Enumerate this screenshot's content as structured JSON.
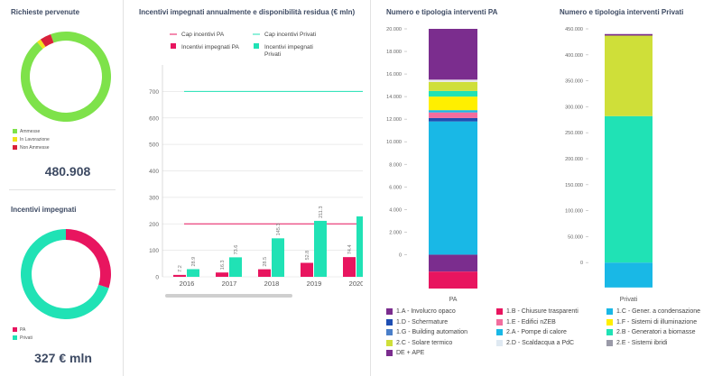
{
  "richieste": {
    "title": "Richieste pervenute",
    "legend": [
      {
        "label": "Ammesse",
        "color": "#7ee24a"
      },
      {
        "label": "In Lavorazione",
        "color": "#f2e21a"
      },
      {
        "label": "Non Ammesse",
        "color": "#d9213a"
      }
    ],
    "total": "480.908"
  },
  "incentivi_impegnati": {
    "title": "Incentivi impegnati",
    "legend": [
      {
        "label": "PA",
        "color": "#e8155f"
      },
      {
        "label": "Privati",
        "color": "#20e2b5"
      }
    ],
    "total": "327 € mln"
  },
  "chart_data": [
    {
      "type": "pie",
      "title": "Richieste pervenute",
      "categories": [
        "Ammesse",
        "In Lavorazione",
        "Non Ammesse"
      ],
      "values": [
        94.5,
        1.5,
        4.0
      ]
    },
    {
      "type": "pie",
      "title": "Incentivi impegnati",
      "categories": [
        "PA",
        "Privati"
      ],
      "values": [
        30,
        70
      ]
    },
    {
      "type": "bar",
      "title": "Incentivi impegnati annualmente e disponibilità residua (€ mln)",
      "categories": [
        "2016",
        "2017",
        "2018",
        "2019",
        "2020"
      ],
      "series": [
        {
          "name": "Incentivi impegnati PA",
          "values": [
            7.2,
            16.3,
            28.5,
            52.8,
            74.4
          ],
          "color": "#e8155f"
        },
        {
          "name": "Incentivi impegnati Privati",
          "values": [
            28.9,
            73.6,
            145.3,
            211.3,
            228
          ],
          "color": "#20e2b5"
        },
        {
          "name": "Cap incentivi PA",
          "values": [
            200,
            200,
            200,
            200,
            200
          ],
          "color": "#e8155f",
          "kind": "line"
        },
        {
          "name": "Cap incentivi Privati",
          "values": [
            700,
            700,
            700,
            700,
            700
          ],
          "color": "#20e2b5",
          "kind": "line"
        }
      ],
      "data_labels": [
        "7.2",
        "28.9",
        "16.3",
        "73.6",
        "28.5",
        "145.3",
        "52.8",
        "211.3",
        "74.4"
      ],
      "yticks": [
        "0",
        "100",
        "200",
        "300",
        "400",
        "500",
        "600",
        "700"
      ],
      "ylim": [
        0,
        800
      ],
      "legend": [
        {
          "label": "Cap incentivi PA",
          "color": "#e8155f",
          "kind": "line"
        },
        {
          "label": "Cap incentivi Privati",
          "color": "#20e2b5",
          "kind": "line"
        },
        {
          "label": "Incentivi impegnati PA",
          "color": "#e8155f",
          "kind": "box"
        },
        {
          "label": "Incentivi impegnati Privati",
          "color": "#20e2b5",
          "kind": "box"
        }
      ]
    },
    {
      "type": "bar",
      "stacked": true,
      "title": "Numero e tipologia interventi PA",
      "categories": [
        "PA"
      ],
      "yticks": [
        "0",
        "2.000",
        "4.000",
        "6.000",
        "8.000",
        "10.000",
        "12.000",
        "14.000",
        "16.000",
        "18.000",
        "20.000"
      ],
      "ylim": [
        -3000,
        20000
      ],
      "segments": [
        {
          "name": "DE + APE",
          "value": -1500,
          "color": "#7b2d8e"
        },
        {
          "name": "1.B - Chiusure trasparenti",
          "value": -1500,
          "color": "#e8155f"
        },
        {
          "name": "2.A - Pompe di calore",
          "value": 11800,
          "color": "#19b8e6"
        },
        {
          "name": "1.D - Schermature",
          "value": 300,
          "color": "#1f4fb3"
        },
        {
          "name": "1.E - Edifici nZEB",
          "value": 500,
          "color": "#f26d9e"
        },
        {
          "name": "1.C - Gener. a condensazione",
          "value": 200,
          "color": "#19b8e6"
        },
        {
          "name": "1.F - Sistemi di illuminazione",
          "value": 1200,
          "color": "#ffef00"
        },
        {
          "name": "2.B - Generatori a biomasse",
          "value": 500,
          "color": "#20e2b5"
        },
        {
          "name": "2.C - Solare termico",
          "value": 800,
          "color": "#cfdf39"
        },
        {
          "name": "2.D - Scaldacqua a PdC",
          "value": 200,
          "color": "#e6e6ea"
        },
        {
          "name": "1.A - Involucro opaco",
          "value": 4500,
          "color": "#7b2d8e"
        }
      ]
    },
    {
      "type": "bar",
      "stacked": true,
      "title": "Numero e tipologia interventi Privati",
      "categories": [
        "Privati"
      ],
      "yticks": [
        "0",
        "50.000",
        "100.000",
        "150.000",
        "200.000",
        "250.000",
        "300.000",
        "350.000",
        "400.000",
        "450.000"
      ],
      "ylim": [
        -50000,
        450000
      ],
      "segments": [
        {
          "name": "2.A - Pompe di calore",
          "value": -48000,
          "color": "#19b8e6"
        },
        {
          "name": "2.B - Generatori a biomasse",
          "value": 282000,
          "color": "#20e2b5"
        },
        {
          "name": "2.C - Solare termico",
          "value": 155000,
          "color": "#cfdf39"
        },
        {
          "name": "1.A - Involucro opaco",
          "value": 3000,
          "color": "#7b2d8e"
        }
      ]
    }
  ],
  "bottom_legend": [
    {
      "label": "1.A - Involucro opaco",
      "color": "#7b2d8e"
    },
    {
      "label": "1.B - Chiusure trasparenti",
      "color": "#e8155f"
    },
    {
      "label": "1.C - Gener. a condensazione",
      "color": "#19b8e6"
    },
    {
      "label": "1.D - Schermature",
      "color": "#1f4fb3"
    },
    {
      "label": "1.E - Edifici nZEB",
      "color": "#f26d9e"
    },
    {
      "label": "1.F - Sistemi di illuminazione",
      "color": "#ffef00"
    },
    {
      "label": "1.G - Building automation",
      "color": "#4b7fc9"
    },
    {
      "label": "2.A - Pompe di calore",
      "color": "#19b8e6"
    },
    {
      "label": "2.B - Generatori a biomasse",
      "color": "#20e2b5"
    },
    {
      "label": "2.C - Solare termico",
      "color": "#cfdf39"
    },
    {
      "label": "2.D - Scaldacqua a PdC",
      "color": "#dfe9f2"
    },
    {
      "label": "2.E - Sistemi ibridi",
      "color": "#9a9aa8"
    },
    {
      "label": "DE + APE",
      "color": "#7b2d8e"
    }
  ]
}
